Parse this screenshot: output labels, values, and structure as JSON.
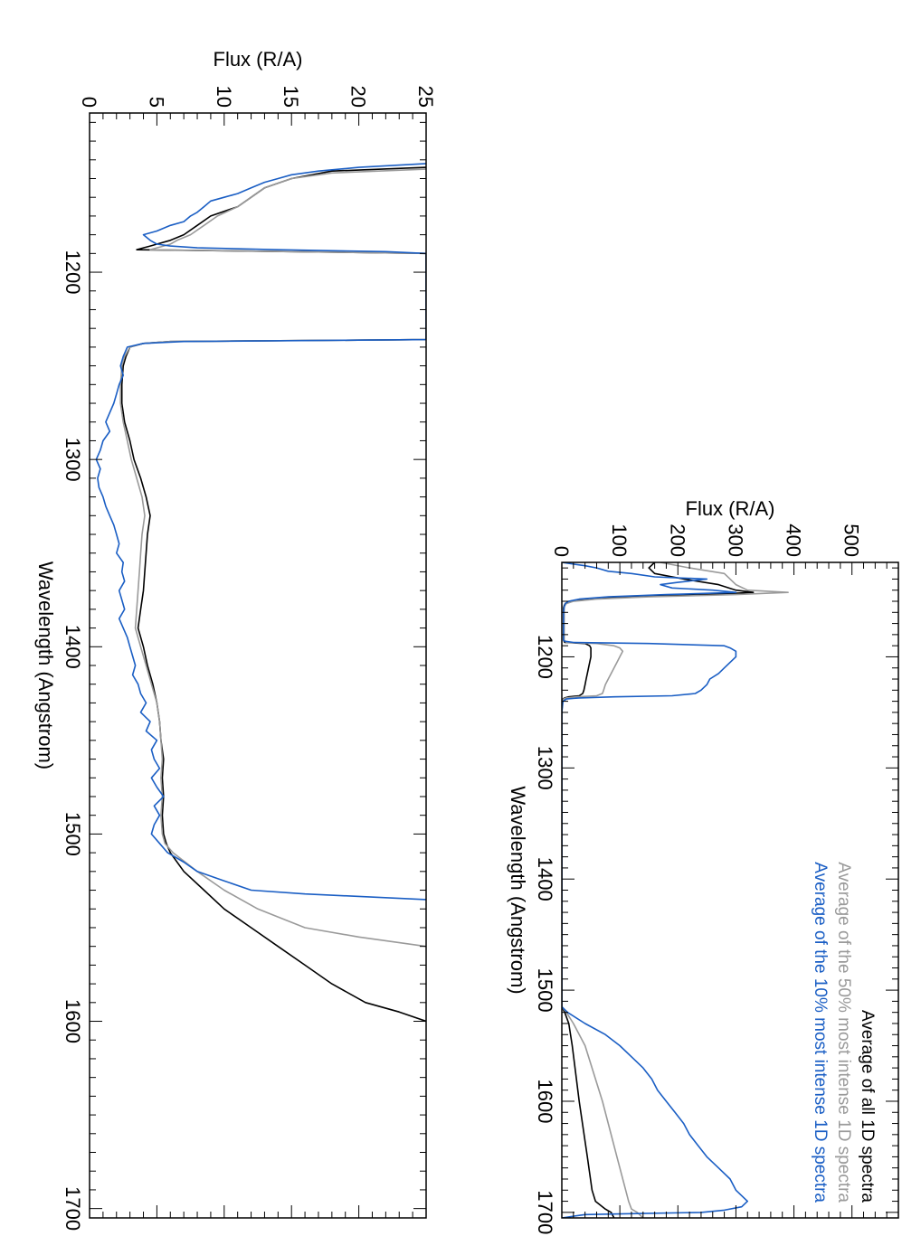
{
  "chart_data": [
    {
      "type": "line",
      "panel": "top",
      "title": "",
      "xlabel": "Wavelength (Angstrom)",
      "ylabel": "Flux (R/A)",
      "xlim": [
        1115,
        1705
      ],
      "ylim": [
        0,
        580
      ],
      "xticks": [
        1200,
        1300,
        1400,
        1500,
        1600,
        1700
      ],
      "yticks": [
        0,
        100,
        200,
        300,
        400,
        500
      ],
      "grid": false,
      "legend_position": "top-right",
      "series": [
        {
          "name": "Average of all 1D spectra",
          "color": "#000000",
          "x": [
            1115,
            1120,
            1125,
            1130,
            1135,
            1140,
            1142,
            1144,
            1146,
            1148,
            1150,
            1152,
            1154,
            1156,
            1158,
            1160,
            1165,
            1170,
            1175,
            1180,
            1185,
            1187,
            1188,
            1190,
            1192,
            1195,
            1200,
            1205,
            1210,
            1215,
            1220,
            1225,
            1230,
            1233,
            1235,
            1236,
            1237,
            1238,
            1240,
            1250,
            1300,
            1400,
            1500,
            1515,
            1520,
            1530,
            1550,
            1600,
            1650,
            1680,
            1690,
            1697,
            1700,
            1705
          ],
          "y": [
            160,
            150,
            160,
            210,
            270,
            300,
            330,
            250,
            120,
            40,
            12,
            6,
            4,
            3,
            3,
            3,
            3,
            3,
            3,
            3,
            3,
            5,
            40,
            48,
            50,
            50,
            50,
            48,
            46,
            44,
            42,
            40,
            38,
            36,
            30,
            12,
            5,
            2,
            1,
            0,
            0,
            0,
            0,
            0,
            5,
            12,
            18,
            30,
            44,
            52,
            58,
            75,
            85,
            90
          ]
        },
        {
          "name": "Average of the 50% most intense 1D spectra",
          "color": "#9a9a9a",
          "x": [
            1115,
            1120,
            1125,
            1130,
            1135,
            1140,
            1142,
            1144,
            1146,
            1148,
            1150,
            1152,
            1154,
            1156,
            1158,
            1160,
            1165,
            1170,
            1175,
            1180,
            1185,
            1187,
            1188,
            1190,
            1192,
            1195,
            1200,
            1205,
            1210,
            1215,
            1220,
            1225,
            1230,
            1233,
            1235,
            1236,
            1237,
            1238,
            1240,
            1250,
            1300,
            1400,
            1500,
            1515,
            1520,
            1530,
            1550,
            1600,
            1650,
            1680,
            1690,
            1697,
            1700,
            1705
          ],
          "y": [
            170,
            220,
            280,
            290,
            300,
            320,
            390,
            300,
            150,
            60,
            20,
            8,
            5,
            4,
            4,
            4,
            4,
            4,
            4,
            4,
            4,
            8,
            60,
            90,
            100,
            105,
            100,
            95,
            90,
            85,
            80,
            75,
            72,
            70,
            60,
            25,
            8,
            3,
            1,
            0,
            0,
            0,
            0,
            0,
            8,
            20,
            40,
            70,
            95,
            110,
            115,
            120,
            130,
            140
          ]
        },
        {
          "name": "Average of the 10% most intense 1D spectra",
          "color": "#1a5ec4",
          "x": [
            1115,
            1118,
            1120,
            1123,
            1125,
            1128,
            1130,
            1133,
            1135,
            1138,
            1140,
            1142,
            1144,
            1146,
            1148,
            1150,
            1152,
            1155,
            1160,
            1165,
            1170,
            1175,
            1180,
            1185,
            1186,
            1187,
            1188,
            1190,
            1192,
            1195,
            1200,
            1205,
            1210,
            1215,
            1220,
            1225,
            1230,
            1233,
            1235,
            1236,
            1237,
            1238,
            1240,
            1250,
            1300,
            1400,
            1500,
            1515,
            1520,
            1530,
            1540,
            1550,
            1560,
            1570,
            1580,
            1590,
            1600,
            1610,
            1620,
            1630,
            1640,
            1650,
            1660,
            1670,
            1680,
            1690,
            1695,
            1698,
            1700,
            1701,
            1702,
            1705
          ],
          "y": [
            0,
            40,
            60,
            80,
            120,
            160,
            250,
            200,
            170,
            190,
            260,
            300,
            180,
            80,
            30,
            12,
            6,
            4,
            3,
            3,
            3,
            3,
            3,
            3,
            5,
            20,
            150,
            280,
            290,
            300,
            300,
            290,
            280,
            270,
            255,
            250,
            240,
            230,
            190,
            90,
            30,
            8,
            2,
            0,
            0,
            0,
            0,
            0,
            10,
            40,
            75,
            100,
            120,
            140,
            155,
            165,
            180,
            195,
            210,
            220,
            235,
            250,
            270,
            290,
            300,
            320,
            310,
            280,
            240,
            140,
            40,
            0
          ]
        }
      ]
    },
    {
      "type": "line",
      "panel": "bottom",
      "title": "",
      "xlabel": "Wavelength (Angstrom)",
      "ylabel": "Flux (R/A)",
      "xlim": [
        1115,
        1705
      ],
      "ylim": [
        0,
        25
      ],
      "xticks": [
        1200,
        1300,
        1400,
        1500,
        1600,
        1700
      ],
      "yticks": [
        0,
        5,
        10,
        15,
        20,
        25
      ],
      "grid": false,
      "legend_position": "none",
      "series": [
        {
          "name": "Average of all 1D spectra",
          "color": "#000000",
          "x": [
            1144,
            1146,
            1150,
            1155,
            1160,
            1165,
            1170,
            1175,
            1180,
            1183,
            1185,
            1186,
            1187,
            1188,
            1189,
            1190,
            1236,
            1237,
            1238,
            1240,
            1245,
            1250,
            1260,
            1270,
            1280,
            1290,
            1300,
            1310,
            1320,
            1330,
            1340,
            1350,
            1360,
            1370,
            1380,
            1390,
            1400,
            1410,
            1420,
            1430,
            1440,
            1450,
            1460,
            1470,
            1480,
            1490,
            1500,
            1505,
            1510,
            1520,
            1530,
            1540,
            1550,
            1560,
            1570,
            1580,
            1590,
            1595,
            1600
          ],
          "y": [
            25,
            18,
            15,
            13,
            12,
            11,
            9,
            8,
            7,
            6,
            5,
            4.5,
            4,
            3.5,
            15,
            25,
            25,
            6,
            4,
            3,
            2.7,
            2.5,
            2.4,
            2.4,
            2.6,
            3,
            3.3,
            3.8,
            4.2,
            4.5,
            4.3,
            4.2,
            4.1,
            4,
            3.8,
            3.6,
            4,
            4.3,
            4.7,
            5,
            5.2,
            5.3,
            5.5,
            5.4,
            5.5,
            5.4,
            5.5,
            5.7,
            6,
            7,
            8.5,
            10,
            12,
            14,
            16,
            18,
            20.5,
            23,
            25
          ]
        },
        {
          "name": "Average of the 50% most intense 1D spectra",
          "color": "#9a9a9a",
          "x": [
            1145,
            1147,
            1150,
            1155,
            1160,
            1165,
            1170,
            1175,
            1180,
            1183,
            1185,
            1186,
            1187,
            1188,
            1189,
            1190,
            1236,
            1237,
            1238,
            1240,
            1245,
            1250,
            1260,
            1270,
            1280,
            1290,
            1300,
            1310,
            1320,
            1330,
            1340,
            1350,
            1360,
            1370,
            1380,
            1390,
            1400,
            1410,
            1420,
            1430,
            1440,
            1450,
            1460,
            1470,
            1480,
            1490,
            1500,
            1505,
            1510,
            1520,
            1530,
            1540,
            1550,
            1555,
            1560
          ],
          "y": [
            25,
            18,
            15,
            13,
            12,
            11,
            9.5,
            8.5,
            7.5,
            6.5,
            6,
            5.5,
            5,
            4.5,
            15,
            25,
            25,
            6,
            4,
            3,
            2.6,
            2.4,
            2.3,
            2.3,
            2.5,
            2.8,
            3.1,
            3.5,
            3.9,
            4.1,
            3.9,
            3.8,
            3.7,
            3.6,
            3.5,
            3.4,
            3.8,
            4.2,
            4.6,
            5,
            5.2,
            5.3,
            5.4,
            5.3,
            5.4,
            5.3,
            5.4,
            5.6,
            6.2,
            8,
            10,
            12.5,
            16,
            20,
            25
          ]
        },
        {
          "name": "Average of the 10% most intense 1D spectra",
          "color": "#1a5ec4",
          "x": [
            1142,
            1144,
            1146,
            1148,
            1150,
            1152,
            1155,
            1158,
            1160,
            1162,
            1165,
            1168,
            1170,
            1173,
            1175,
            1178,
            1180,
            1183,
            1185,
            1186,
            1187,
            1188,
            1189,
            1190,
            1236,
            1237,
            1238,
            1240,
            1245,
            1250,
            1255,
            1260,
            1265,
            1270,
            1275,
            1280,
            1285,
            1290,
            1295,
            1300,
            1305,
            1310,
            1315,
            1320,
            1325,
            1330,
            1335,
            1340,
            1345,
            1350,
            1355,
            1360,
            1365,
            1370,
            1375,
            1380,
            1385,
            1390,
            1395,
            1400,
            1405,
            1410,
            1415,
            1420,
            1425,
            1430,
            1435,
            1440,
            1445,
            1450,
            1455,
            1460,
            1465,
            1470,
            1475,
            1480,
            1485,
            1490,
            1495,
            1500,
            1505,
            1510,
            1515,
            1520,
            1525,
            1530,
            1532,
            1535
          ],
          "y": [
            25,
            20,
            17,
            15,
            14,
            13,
            12,
            11,
            10,
            9,
            8.5,
            8,
            7.5,
            7,
            6,
            5,
            4,
            4.5,
            5,
            6,
            8,
            14,
            22,
            25,
            25,
            7,
            4,
            2.8,
            2.5,
            2.3,
            2.5,
            2.2,
            2,
            1.8,
            1.5,
            1.2,
            1.5,
            1,
            0.8,
            0.5,
            0.8,
            0.6,
            0.7,
            1,
            1.2,
            1.5,
            1.8,
            2,
            2.2,
            2,
            2.5,
            2.4,
            2.6,
            2.2,
            2.4,
            2.6,
            2.2,
            2.5,
            2.8,
            3,
            3.2,
            3.4,
            3.2,
            3.6,
            3.8,
            4.2,
            3.8,
            4.5,
            4.2,
            5,
            4.6,
            4.8,
            5.2,
            4.6,
            5,
            5.5,
            4.8,
            5.2,
            4.8,
            4.6,
            5.2,
            5.8,
            7,
            8,
            10,
            12,
            16,
            25
          ]
        }
      ]
    }
  ]
}
